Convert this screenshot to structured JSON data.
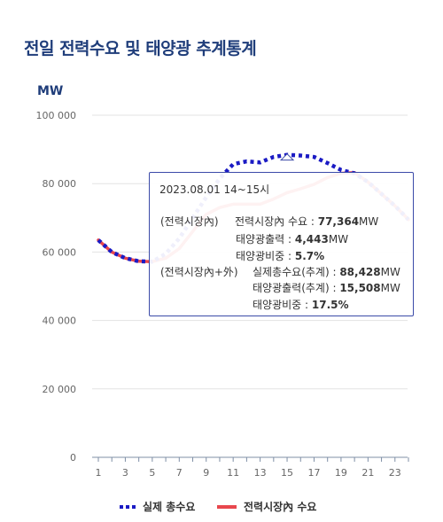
{
  "title": "전일 전력수요 및 태양광 추계통계",
  "unit": "MW",
  "chart_data": {
    "type": "line",
    "x": [
      1,
      2,
      3,
      4,
      5,
      6,
      7,
      8,
      9,
      10,
      11,
      12,
      13,
      14,
      15,
      16,
      17,
      18,
      19,
      20,
      21,
      22,
      23,
      24
    ],
    "x_ticks": [
      "1",
      "3",
      "5",
      "7",
      "9",
      "11",
      "13",
      "15",
      "17",
      "19",
      "21",
      "23"
    ],
    "y_ticks": [
      "0",
      "20 000",
      "40 000",
      "60 000",
      "80 000",
      "100 000"
    ],
    "ylim": [
      0,
      100000
    ],
    "grid": true,
    "legend_position": "bottom",
    "series": [
      {
        "name": "실제 총수요",
        "color": "#1b1bc4",
        "style": "dotted",
        "values": [
          63500,
          60000,
          58200,
          57300,
          57200,
          59500,
          64000,
          70000,
          76000,
          81500,
          85700,
          86500,
          86200,
          87800,
          88428,
          88200,
          87800,
          86000,
          84000,
          83000,
          80500,
          77000,
          73500,
          69500
        ]
      },
      {
        "name": "전력시장內 수요",
        "color": "#e8474d",
        "style": "solid",
        "values": [
          63500,
          60000,
          58200,
          57300,
          57200,
          58200,
          61000,
          66000,
          71000,
          73000,
          74000,
          74000,
          74000,
          75500,
          77364,
          78500,
          79800,
          81800,
          83000,
          83200,
          80500,
          77000,
          73500,
          69500
        ]
      }
    ]
  },
  "tooltip": {
    "time": "2023.08.01 14~15시",
    "market_group": "(전력시장內)",
    "market_demand_label": "전력시장內 수요 : ",
    "market_demand_value": "77,364",
    "market_solar_label": "태양광출력 : ",
    "market_solar_value": "4,443",
    "market_ratio_label": "태양광비중 : ",
    "market_ratio_value": "5.7%",
    "total_group": "(전력시장內+外)",
    "total_demand_label": "실제총수요(추계) : ",
    "total_demand_value": "88,428",
    "total_solar_label": "태양광출력(추계) : ",
    "total_solar_value": "15,508",
    "total_ratio_label": "태양광비중 : ",
    "total_ratio_value": "17.5%",
    "mw": "MW"
  }
}
